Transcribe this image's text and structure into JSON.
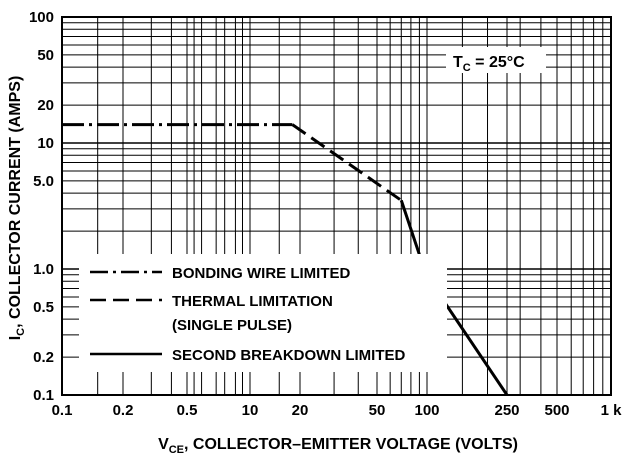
{
  "chart_data": {
    "type": "line",
    "x_scale": "log (segmented)",
    "y_scale": "log",
    "grid": true,
    "ylim": [
      0.1,
      100
    ],
    "xticks": [
      "0.1",
      "0.2",
      "0.5",
      "10",
      "20",
      "50",
      "100",
      "250",
      "500",
      "1 k"
    ],
    "yticks": [
      "100",
      "50",
      "20",
      "10",
      "5.0",
      "1.0",
      "0.5",
      "0.2",
      "0.1"
    ],
    "xlabel": {
      "main": "V",
      "sub": "CE",
      "rest": ", COLLECTOR–EMITTER VOLTAGE (VOLTS)"
    },
    "ylabel": {
      "main": "I",
      "sub": "C",
      "rest": ", COLLECTOR CURRENT (AMPS)"
    },
    "annotation": {
      "main": "T",
      "sub": "C",
      "rest": " = 25°C"
    },
    "legend": {
      "placement": "bottom-left",
      "entries": [
        {
          "style": "dash-dot",
          "text": "BONDING WIRE LIMITED"
        },
        {
          "style": "dashed",
          "text": "THERMAL LIMITATION"
        },
        {
          "style": "none",
          "text": "(SINGLE PULSE)"
        },
        {
          "style": "solid",
          "text": "SECOND BREAKDOWN LIMITED"
        }
      ]
    },
    "series": [
      {
        "style": "dash-dot",
        "x": [
          0.1,
          0.2,
          0.5,
          10,
          18
        ],
        "y": [
          14,
          14,
          14,
          14,
          14
        ]
      },
      {
        "style": "dashed",
        "x": [
          18,
          70
        ],
        "y": [
          14,
          3.5
        ]
      },
      {
        "style": "solid",
        "x": [
          70,
          90,
          110,
          250
        ],
        "y": [
          3.5,
          1.3,
          0.7,
          0.1
        ]
      }
    ]
  }
}
